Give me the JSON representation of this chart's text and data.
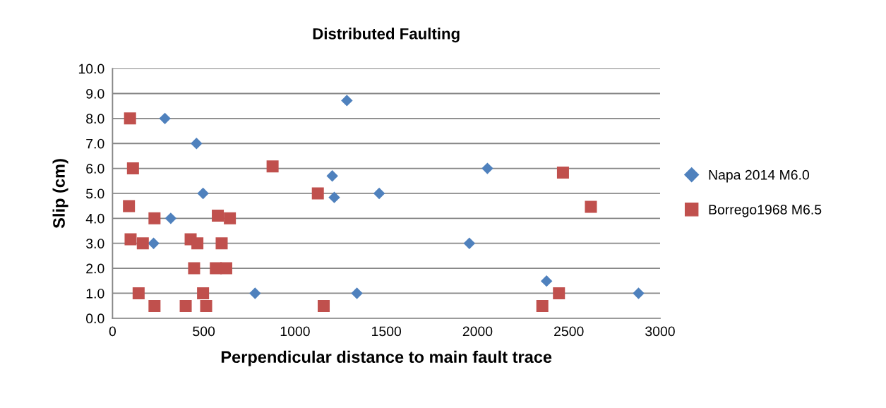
{
  "chart_data": {
    "type": "scatter",
    "title": "Distributed Faulting",
    "xlabel": "Perpendicular distance to main fault trace",
    "ylabel": "Slip (cm)",
    "xlim": [
      0,
      3000
    ],
    "xticks": [
      0,
      500,
      1000,
      1500,
      2000,
      2500,
      3000
    ],
    "ylim": [
      0,
      10
    ],
    "yticks": [
      {
        "value": 0,
        "label": "0.0"
      },
      {
        "value": 1,
        "label": "1.0"
      },
      {
        "value": 2,
        "label": "2.0"
      },
      {
        "value": 3,
        "label": "3.0"
      },
      {
        "value": 4,
        "label": "4.0"
      },
      {
        "value": 5,
        "label": "5.0"
      },
      {
        "value": 6,
        "label": "6.0"
      },
      {
        "value": 7,
        "label": "7.0"
      },
      {
        "value": 8,
        "label": "8.0"
      },
      {
        "value": 9,
        "label": "9.0"
      },
      {
        "value": 10,
        "label": "10.0"
      }
    ],
    "grid": "y",
    "legend": "right",
    "series": [
      {
        "name": "Napa 2014 M6.0",
        "color": "#4f81bd",
        "marker": "diamond",
        "x": [
          287,
          460,
          1284,
          1204,
          496,
          1215,
          1461,
          319,
          225,
          781,
          1339,
          2054,
          1955,
          2378,
          2882
        ],
        "values": [
          8.0,
          7.0,
          8.72,
          5.7,
          5.0,
          4.84,
          5.0,
          4.0,
          3.0,
          1.0,
          1.0,
          6.0,
          3.0,
          1.49,
          1.0
        ]
      },
      {
        "name": "Borrego1968 M6.5",
        "color": "#c0504d",
        "marker": "square",
        "x": [
          96,
          112,
          877,
          90,
          1125,
          230,
          577,
          643,
          99,
          166,
          428,
          465,
          598,
          447,
          566,
          623,
          143,
          496,
          230,
          401,
          513,
          1157,
          2468,
          2621,
          2446,
          2355
        ],
        "values": [
          8.0,
          6.0,
          6.08,
          4.49,
          5.0,
          4.0,
          4.11,
          4.0,
          3.16,
          3.0,
          3.16,
          3.0,
          3.0,
          2.0,
          2.0,
          2.0,
          1.0,
          1.0,
          0.49,
          0.49,
          0.49,
          0.49,
          5.83,
          4.46,
          1.0,
          0.49
        ]
      }
    ]
  }
}
